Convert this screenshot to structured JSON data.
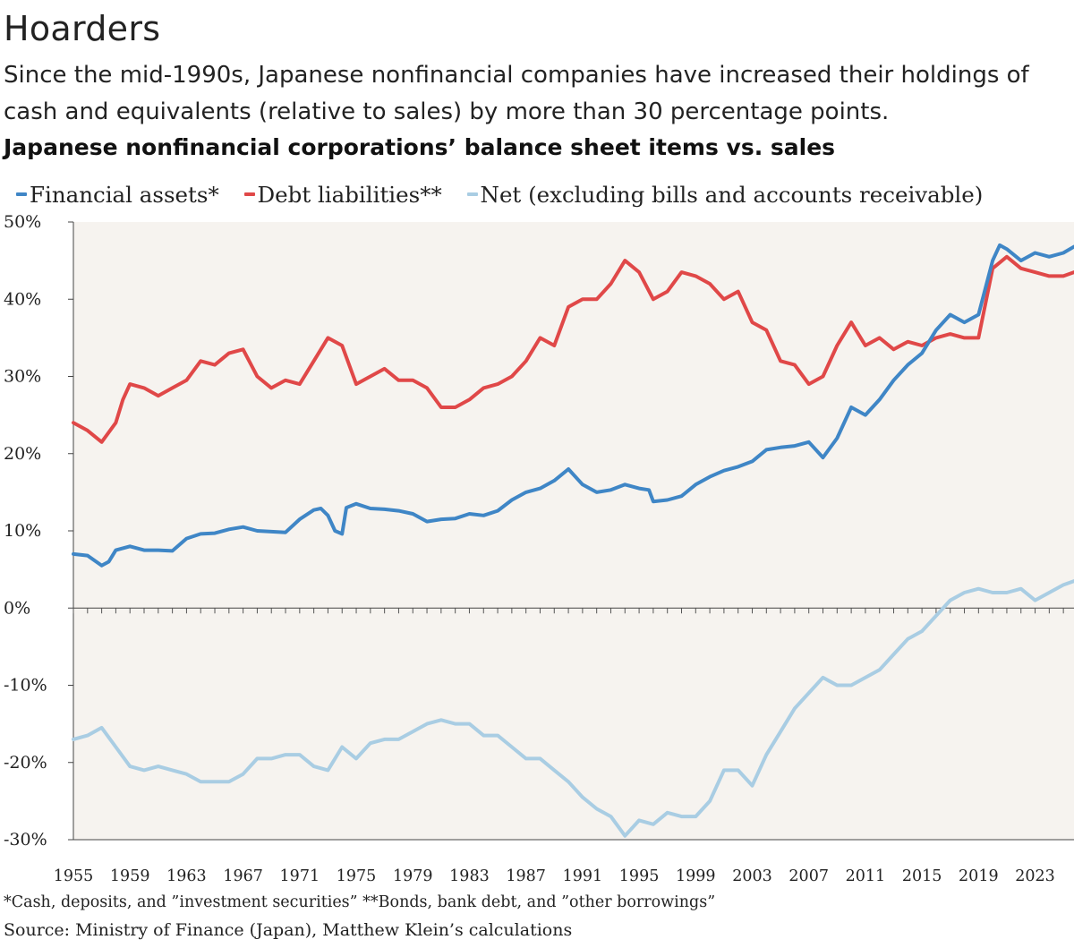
{
  "header": {
    "title": "Hoarders",
    "subtitle": "Since the mid-1990s, Japanese nonfinancial companies have increased their holdings of cash and equivalents (relative to sales) by more than 30 percentage points.",
    "chart_heading": "Japanese nonfinancial corporations’ balance sheet items vs. sales"
  },
  "legend": [
    {
      "label": "Financial assets*",
      "color": "#3f86c6"
    },
    {
      "label": "Debt liabilities**",
      "color": "#e04848"
    },
    {
      "label": "Net (excluding bills and accounts receivable)",
      "color": "#a9cde3"
    }
  ],
  "footer": {
    "footnote": "*Cash, deposits, and ”investment securities”   **Bonds, bank debt, and ”other borrowings”",
    "source": "Source: Ministry of Finance (Japan), Matthew Klein’s calculations"
  },
  "chart_data": {
    "type": "line",
    "title": "Japanese nonfinancial corporations’ balance sheet items vs. sales",
    "xlabel": "",
    "ylabel": "",
    "xlim": [
      1955,
      2025.75
    ],
    "ylim": [
      -30,
      50
    ],
    "yticks": [
      50,
      40,
      30,
      20,
      10,
      0,
      -10,
      -20,
      -30
    ],
    "ytick_labels": [
      "50%",
      "40%",
      "30%",
      "20%",
      "10%",
      "0%",
      "-10%",
      "-20%",
      "-30%"
    ],
    "xticks": [
      1955,
      1959,
      1963,
      1967,
      1971,
      1975,
      1979,
      1983,
      1987,
      1991,
      1995,
      1999,
      2003,
      2007,
      2011,
      2015,
      2019,
      2023
    ],
    "grid": false,
    "series": [
      {
        "name": "Financial assets*",
        "color": "#3f86c6",
        "points": [
          [
            1955,
            7
          ],
          [
            1956,
            6.8
          ],
          [
            1957,
            5.5
          ],
          [
            1957.5,
            6
          ],
          [
            1958,
            7.5
          ],
          [
            1959,
            8
          ],
          [
            1960,
            7.5
          ],
          [
            1961,
            7.5
          ],
          [
            1962,
            7.4
          ],
          [
            1963,
            9
          ],
          [
            1964,
            9.6
          ],
          [
            1965,
            9.7
          ],
          [
            1966,
            10.2
          ],
          [
            1967,
            10.5
          ],
          [
            1968,
            10
          ],
          [
            1969,
            9.9
          ],
          [
            1970,
            9.8
          ],
          [
            1971,
            11.5
          ],
          [
            1972,
            12.7
          ],
          [
            1972.5,
            12.9
          ],
          [
            1973,
            12
          ],
          [
            1973.5,
            10
          ],
          [
            1974,
            9.6
          ],
          [
            1974.3,
            13
          ],
          [
            1975,
            13.5
          ],
          [
            1976,
            12.9
          ],
          [
            1977,
            12.8
          ],
          [
            1978,
            12.6
          ],
          [
            1979,
            12.2
          ],
          [
            1980,
            11.2
          ],
          [
            1981,
            11.5
          ],
          [
            1982,
            11.6
          ],
          [
            1983,
            12.2
          ],
          [
            1984,
            12
          ],
          [
            1985,
            12.6
          ],
          [
            1986,
            14
          ],
          [
            1987,
            15
          ],
          [
            1988,
            15.5
          ],
          [
            1989,
            16.5
          ],
          [
            1990,
            18
          ],
          [
            1991,
            16
          ],
          [
            1992,
            15
          ],
          [
            1993,
            15.3
          ],
          [
            1994,
            16
          ],
          [
            1995,
            15.5
          ],
          [
            1995.7,
            15.3
          ],
          [
            1996,
            13.8
          ],
          [
            1997,
            14
          ],
          [
            1998,
            14.5
          ],
          [
            1999,
            16
          ],
          [
            2000,
            17
          ],
          [
            2001,
            17.8
          ],
          [
            2002,
            18.3
          ],
          [
            2003,
            19
          ],
          [
            2004,
            20.5
          ],
          [
            2005,
            20.8
          ],
          [
            2006,
            21
          ],
          [
            2007,
            21.5
          ],
          [
            2008,
            19.5
          ],
          [
            2009,
            22
          ],
          [
            2010,
            26
          ],
          [
            2011,
            25
          ],
          [
            2012,
            27
          ],
          [
            2013,
            29.5
          ],
          [
            2014,
            31.5
          ],
          [
            2015,
            33
          ],
          [
            2016,
            36
          ],
          [
            2017,
            38
          ],
          [
            2018,
            37
          ],
          [
            2019,
            38
          ],
          [
            2020,
            45
          ],
          [
            2020.5,
            47
          ],
          [
            2021,
            46.5
          ],
          [
            2022,
            45
          ],
          [
            2023,
            46
          ],
          [
            2024,
            45.5
          ],
          [
            2025,
            46
          ],
          [
            2025.75,
            46.8
          ]
        ]
      },
      {
        "name": "Debt liabilities**",
        "color": "#e04848",
        "points": [
          [
            1955,
            24
          ],
          [
            1956,
            23
          ],
          [
            1957,
            21.5
          ],
          [
            1958,
            24
          ],
          [
            1958.5,
            27
          ],
          [
            1959,
            29
          ],
          [
            1960,
            28.5
          ],
          [
            1961,
            27.5
          ],
          [
            1962,
            28.5
          ],
          [
            1963,
            29.5
          ],
          [
            1964,
            32
          ],
          [
            1965,
            31.5
          ],
          [
            1966,
            33
          ],
          [
            1967,
            33.5
          ],
          [
            1968,
            30
          ],
          [
            1969,
            28.5
          ],
          [
            1970,
            29.5
          ],
          [
            1971,
            29
          ],
          [
            1972,
            32
          ],
          [
            1973,
            35
          ],
          [
            1974,
            34
          ],
          [
            1975,
            29
          ],
          [
            1976,
            30
          ],
          [
            1977,
            31
          ],
          [
            1978,
            29.5
          ],
          [
            1979,
            29.5
          ],
          [
            1980,
            28.5
          ],
          [
            1981,
            26
          ],
          [
            1982,
            26
          ],
          [
            1983,
            27
          ],
          [
            1984,
            28.5
          ],
          [
            1985,
            29
          ],
          [
            1986,
            30
          ],
          [
            1987,
            32
          ],
          [
            1988,
            35
          ],
          [
            1989,
            34
          ],
          [
            1990,
            39
          ],
          [
            1991,
            40
          ],
          [
            1992,
            40
          ],
          [
            1993,
            42
          ],
          [
            1994,
            45
          ],
          [
            1995,
            43.5
          ],
          [
            1996,
            40
          ],
          [
            1997,
            41
          ],
          [
            1998,
            43.5
          ],
          [
            1999,
            43
          ],
          [
            2000,
            42
          ],
          [
            2001,
            40
          ],
          [
            2002,
            41
          ],
          [
            2003,
            37
          ],
          [
            2004,
            36
          ],
          [
            2005,
            32
          ],
          [
            2006,
            31.5
          ],
          [
            2007,
            29
          ],
          [
            2008,
            30
          ],
          [
            2009,
            34
          ],
          [
            2010,
            37
          ],
          [
            2011,
            34
          ],
          [
            2012,
            35
          ],
          [
            2013,
            33.5
          ],
          [
            2014,
            34.5
          ],
          [
            2015,
            34
          ],
          [
            2016,
            35
          ],
          [
            2017,
            35.5
          ],
          [
            2018,
            35
          ],
          [
            2019,
            35
          ],
          [
            2020,
            44
          ],
          [
            2021,
            45.5
          ],
          [
            2022,
            44
          ],
          [
            2023,
            43.5
          ],
          [
            2024,
            43
          ],
          [
            2025,
            43
          ],
          [
            2025.75,
            43.5
          ]
        ]
      },
      {
        "name": "Net (excluding bills and accounts receivable)",
        "color": "#a9cde3",
        "points": [
          [
            1955,
            -17
          ],
          [
            1956,
            -16.5
          ],
          [
            1957,
            -15.5
          ],
          [
            1958,
            -18
          ],
          [
            1959,
            -20.5
          ],
          [
            1960,
            -21
          ],
          [
            1961,
            -20.5
          ],
          [
            1962,
            -21
          ],
          [
            1963,
            -21.5
          ],
          [
            1964,
            -22.5
          ],
          [
            1965,
            -22.5
          ],
          [
            1966,
            -22.5
          ],
          [
            1967,
            -21.5
          ],
          [
            1968,
            -19.5
          ],
          [
            1969,
            -19.5
          ],
          [
            1970,
            -19
          ],
          [
            1971,
            -19
          ],
          [
            1972,
            -20.5
          ],
          [
            1973,
            -21
          ],
          [
            1974,
            -18
          ],
          [
            1975,
            -19.5
          ],
          [
            1976,
            -17.5
          ],
          [
            1977,
            -17
          ],
          [
            1978,
            -17
          ],
          [
            1979,
            -16
          ],
          [
            1980,
            -15
          ],
          [
            1981,
            -14.5
          ],
          [
            1982,
            -15
          ],
          [
            1983,
            -15
          ],
          [
            1984,
            -16.5
          ],
          [
            1985,
            -16.5
          ],
          [
            1986,
            -18
          ],
          [
            1987,
            -19.5
          ],
          [
            1988,
            -19.5
          ],
          [
            1989,
            -21
          ],
          [
            1990,
            -22.5
          ],
          [
            1991,
            -24.5
          ],
          [
            1992,
            -26
          ],
          [
            1993,
            -27
          ],
          [
            1994,
            -29.5
          ],
          [
            1995,
            -27.5
          ],
          [
            1996,
            -28
          ],
          [
            1997,
            -26.5
          ],
          [
            1998,
            -27
          ],
          [
            1999,
            -27
          ],
          [
            2000,
            -25
          ],
          [
            2001,
            -21
          ],
          [
            2002,
            -21
          ],
          [
            2003,
            -23
          ],
          [
            2004,
            -19
          ],
          [
            2005,
            -16
          ],
          [
            2006,
            -13
          ],
          [
            2007,
            -11
          ],
          [
            2008,
            -9
          ],
          [
            2009,
            -10
          ],
          [
            2010,
            -10
          ],
          [
            2011,
            -9
          ],
          [
            2012,
            -8
          ],
          [
            2013,
            -6
          ],
          [
            2014,
            -4
          ],
          [
            2015,
            -3
          ],
          [
            2016,
            -1
          ],
          [
            2017,
            1
          ],
          [
            2018,
            2
          ],
          [
            2019,
            2.5
          ],
          [
            2020,
            2
          ],
          [
            2021,
            2
          ],
          [
            2022,
            2.5
          ],
          [
            2023,
            1
          ],
          [
            2024,
            2
          ],
          [
            2025,
            3
          ],
          [
            2025.75,
            3.5
          ]
        ]
      }
    ]
  }
}
